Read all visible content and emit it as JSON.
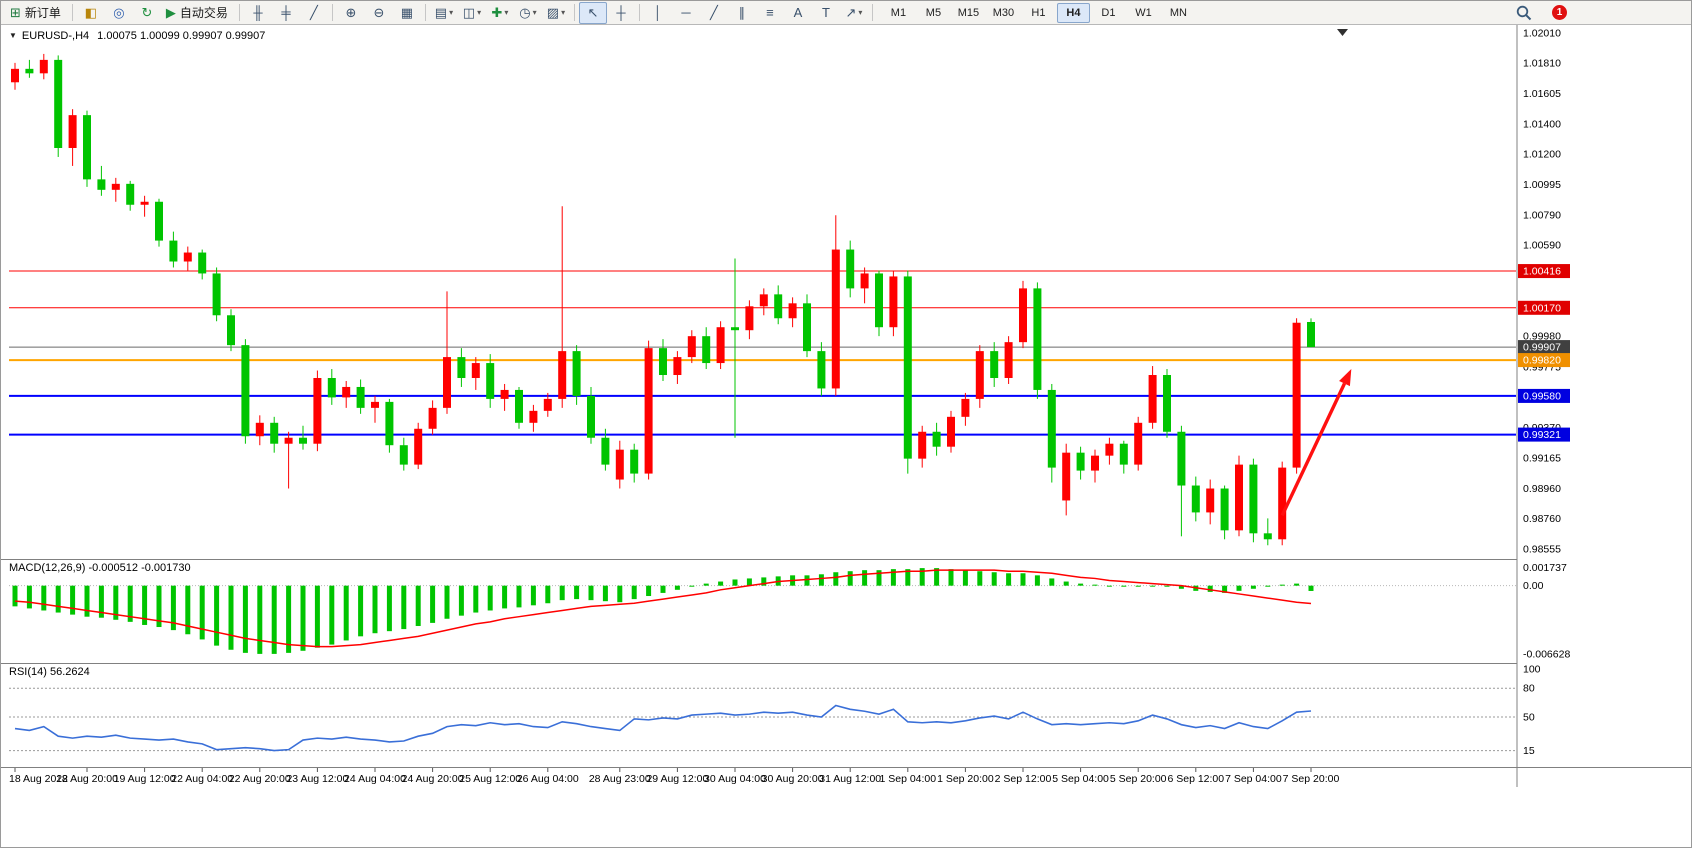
{
  "colors": {
    "bull": "#ff0000",
    "bear": "#00c400",
    "macd_bar": "#00c400",
    "macd_signal": "#ff0000",
    "rsi_line": "#3a6fd8",
    "current_price": "#6a6a6a",
    "arrow": "#ff1010",
    "badge": "#e01010"
  },
  "toolbar": {
    "buttons": [
      {
        "name": "new-order-button",
        "icon": "new-order-icon",
        "glyph": "⊞",
        "glyph_color": "#1f7a3f",
        "label": "新订单"
      },
      {
        "sep": true
      },
      {
        "name": "market-watch-button",
        "icon": "market-watch-icon",
        "glyph": "◧",
        "glyph_color": "#b8860b"
      },
      {
        "name": "navigator-button",
        "icon": "navigator-icon",
        "glyph": "◎",
        "glyph_color": "#2f5fae"
      },
      {
        "name": "refresh-button",
        "icon": "circular-arrows-icon",
        "glyph": "↻",
        "glyph_color": "#1f8f3f"
      },
      {
        "name": "autotrading-button",
        "icon": "autotrading-icon",
        "glyph": "▶",
        "glyph_color": "#1f8f3f",
        "label": "自动交易"
      },
      {
        "sep": true
      },
      {
        "name": "bar-chart-button",
        "icon": "bar-chart-icon",
        "glyph": "╫"
      },
      {
        "name": "candlestick-chart-button",
        "icon": "candlestick-icon",
        "glyph": "╪"
      },
      {
        "name": "line-chart-button",
        "icon": "line-chart-icon",
        "glyph": "╱"
      },
      {
        "sep": true
      },
      {
        "name": "zoom-in-button",
        "icon": "zoom-in-icon",
        "glyph": "⊕"
      },
      {
        "name": "zoom-out-button",
        "icon": "zoom-out-icon",
        "glyph": "⊖"
      },
      {
        "name": "tile-windows-button",
        "icon": "tile-windows-icon",
        "glyph": "▦"
      },
      {
        "sep": true
      },
      {
        "name": "indicator-list-button",
        "icon": "indicator-list-icon",
        "glyph": "▤",
        "dropdown": true
      },
      {
        "name": "indicator-window-button",
        "icon": "indicator-window-icon",
        "glyph": "◫",
        "dropdown": true
      },
      {
        "name": "add-indicator-button",
        "icon": "add-indicator-icon",
        "glyph": "✚",
        "glyph_color": "#1f8f3f",
        "dropdown": true
      },
      {
        "name": "periods-button",
        "icon": "clock-icon",
        "glyph": "◷",
        "dropdown": true
      },
      {
        "name": "templates-button",
        "icon": "template-icon",
        "glyph": "▨",
        "dropdown": true
      },
      {
        "sep": true
      },
      {
        "name": "cursor-button",
        "icon": "cursor-icon",
        "glyph": "↖",
        "active": true
      },
      {
        "name": "crosshair-button",
        "icon": "crosshair-icon",
        "glyph": "┼"
      },
      {
        "sep": true
      },
      {
        "name": "vertical-line-button",
        "icon": "vertical-line-icon",
        "glyph": "│"
      },
      {
        "name": "horizontal-line-button",
        "icon": "horizontal-line-icon",
        "glyph": "─"
      },
      {
        "name": "trendline-button",
        "icon": "trendline-icon",
        "glyph": "╱"
      },
      {
        "name": "equidistant-channel-button",
        "icon": "channel-icon",
        "glyph": "∥"
      },
      {
        "name": "fibonacci-button",
        "icon": "fibonacci-icon",
        "glyph": "≡"
      },
      {
        "name": "text-button",
        "icon": "text-icon",
        "glyph": "A"
      },
      {
        "name": "label-button",
        "icon": "label-icon",
        "glyph": "T"
      },
      {
        "name": "arrows-button",
        "icon": "arrow-object-icon",
        "glyph": "↗",
        "dropdown": true
      },
      {
        "sep": true
      }
    ],
    "timeframes": [
      {
        "label": "M1"
      },
      {
        "label": "M5"
      },
      {
        "label": "M15"
      },
      {
        "label": "M30"
      },
      {
        "label": "H1"
      },
      {
        "label": "H4",
        "active": true
      },
      {
        "label": "D1"
      },
      {
        "label": "W1"
      },
      {
        "label": "MN"
      }
    ],
    "badge_count": "1"
  },
  "chart": {
    "title_symbol": "EURUSD-,H4",
    "title_ohlc": "1.00075 1.00099 0.99907 0.99907",
    "price_ticks": [
      "1.02010",
      "1.01810",
      "1.01605",
      "1.01400",
      "1.01200",
      "1.00995",
      "1.00790",
      "1.00590",
      "0.99980",
      "0.99775",
      "0.99370",
      "0.99165",
      "0.98960",
      "0.98760",
      "0.98555"
    ],
    "price_tags": [
      {
        "text": "1.00416",
        "price": 1.00416,
        "color": "#e00000"
      },
      {
        "text": "1.00170",
        "price": 1.0017,
        "color": "#e00000"
      },
      {
        "text": "0.99907",
        "price": 0.99907,
        "color": "#404040"
      },
      {
        "text": "0.99820",
        "price": 0.9982,
        "color": "#f09000"
      },
      {
        "text": "0.99580",
        "price": 0.9958,
        "color": "#0000e0"
      },
      {
        "text": "0.99321",
        "price": 0.99321,
        "color": "#0000e0"
      }
    ],
    "hlines": [
      {
        "price": 1.00416,
        "color": "#ff0000",
        "width": 1
      },
      {
        "price": 1.0017,
        "color": "#ff0000",
        "width": 1
      },
      {
        "price": 0.99907,
        "color": "#6a6a6a",
        "width": 1
      },
      {
        "price": 0.9982,
        "color": "#ffa500",
        "width": 2
      },
      {
        "price": 0.9958,
        "color": "#0000ff",
        "width": 2
      },
      {
        "price": 0.99321,
        "color": "#0000ff",
        "width": 2
      }
    ],
    "arrow": {
      "from_idx": 88,
      "from_price": 0.9878,
      "to_idx": 92.8,
      "to_price": 0.9976
    }
  },
  "chart_data": {
    "type": "candlestick",
    "symbol": "EURUSD-",
    "timeframe": "H4",
    "ylim": [
      0.98555,
      1.0201
    ],
    "ohlc": [
      [
        1.0168,
        1.0181,
        1.0163,
        1.0177
      ],
      [
        1.0177,
        1.0183,
        1.0171,
        1.0174
      ],
      [
        1.0174,
        1.0187,
        1.017,
        1.0183
      ],
      [
        1.0183,
        1.0186,
        1.0118,
        1.0124
      ],
      [
        1.0124,
        1.015,
        1.0112,
        1.0146
      ],
      [
        1.0146,
        1.0149,
        1.0098,
        1.0103
      ],
      [
        1.0103,
        1.0112,
        1.0092,
        1.0096
      ],
      [
        1.0096,
        1.0104,
        1.0088,
        1.01
      ],
      [
        1.01,
        1.0102,
        1.0082,
        1.0086
      ],
      [
        1.0086,
        1.0092,
        1.0078,
        1.0088
      ],
      [
        1.0088,
        1.009,
        1.0058,
        1.0062
      ],
      [
        1.0062,
        1.0068,
        1.0044,
        1.0048
      ],
      [
        1.0048,
        1.0058,
        1.0042,
        1.0054
      ],
      [
        1.0054,
        1.0056,
        1.0036,
        1.004
      ],
      [
        1.004,
        1.0044,
        1.0008,
        1.0012
      ],
      [
        1.0012,
        1.0016,
        0.9988,
        0.9992
      ],
      [
        0.9992,
        0.9996,
        0.9926,
        0.9931
      ],
      [
        0.9931,
        0.9945,
        0.9925,
        0.994
      ],
      [
        0.994,
        0.9944,
        0.992,
        0.9926
      ],
      [
        0.9926,
        0.9934,
        0.9896,
        0.993
      ],
      [
        0.993,
        0.9938,
        0.9922,
        0.9926
      ],
      [
        0.9926,
        0.9975,
        0.9921,
        0.997
      ],
      [
        0.997,
        0.9976,
        0.9952,
        0.9957
      ],
      [
        0.9957,
        0.9968,
        0.995,
        0.9964
      ],
      [
        0.9964,
        0.9969,
        0.9946,
        0.995
      ],
      [
        0.995,
        0.9958,
        0.994,
        0.9954
      ],
      [
        0.9954,
        0.9956,
        0.992,
        0.9925
      ],
      [
        0.9925,
        0.993,
        0.9908,
        0.9912
      ],
      [
        0.9912,
        0.994,
        0.9909,
        0.9936
      ],
      [
        0.9936,
        0.9955,
        0.9932,
        0.995
      ],
      [
        0.995,
        1.0028,
        0.9946,
        0.9984
      ],
      [
        0.9984,
        0.999,
        0.9964,
        0.997
      ],
      [
        0.997,
        0.9984,
        0.9962,
        0.998
      ],
      [
        0.998,
        0.9986,
        0.995,
        0.9956
      ],
      [
        0.9956,
        0.9966,
        0.9948,
        0.9962
      ],
      [
        0.9962,
        0.9964,
        0.9936,
        0.994
      ],
      [
        0.994,
        0.9952,
        0.9934,
        0.9948
      ],
      [
        0.9948,
        0.996,
        0.9944,
        0.9956
      ],
      [
        0.9956,
        1.0085,
        0.995,
        0.9988
      ],
      [
        0.9988,
        0.9992,
        0.9952,
        0.9958
      ],
      [
        0.9958,
        0.9964,
        0.9926,
        0.993
      ],
      [
        0.993,
        0.9936,
        0.9908,
        0.9912
      ],
      [
        0.9902,
        0.9928,
        0.9896,
        0.9922
      ],
      [
        0.9922,
        0.9926,
        0.99,
        0.9906
      ],
      [
        0.9906,
        0.9995,
        0.9902,
        0.999
      ],
      [
        0.999,
        0.9996,
        0.9968,
        0.9972
      ],
      [
        0.9972,
        0.9988,
        0.9966,
        0.9984
      ],
      [
        0.9984,
        1.0002,
        0.998,
        0.9998
      ],
      [
        0.9998,
        1.0004,
        0.9976,
        0.998
      ],
      [
        0.998,
        1.0008,
        0.9976,
        1.0004
      ],
      [
        1.0004,
        1.005,
        0.993,
        1.0002
      ],
      [
        1.0002,
        1.0022,
        0.9996,
        1.0018
      ],
      [
        1.0018,
        1.003,
        1.0012,
        1.0026
      ],
      [
        1.0026,
        1.0032,
        1.0006,
        1.001
      ],
      [
        1.001,
        1.0024,
        1.0004,
        1.002
      ],
      [
        1.002,
        1.0026,
        0.9984,
        0.9988
      ],
      [
        0.9988,
        0.9994,
        0.9958,
        0.9963
      ],
      [
        0.9963,
        1.0079,
        0.9958,
        1.0056
      ],
      [
        1.0056,
        1.0062,
        1.0024,
        1.003
      ],
      [
        1.003,
        1.0044,
        1.002,
        1.004
      ],
      [
        1.004,
        1.0042,
        0.9998,
        1.0004
      ],
      [
        1.0004,
        1.0042,
        0.9998,
        1.0038
      ],
      [
        1.0038,
        1.0042,
        0.9906,
        0.9916
      ],
      [
        0.9916,
        0.9938,
        0.991,
        0.9934
      ],
      [
        0.9934,
        0.994,
        0.9918,
        0.9924
      ],
      [
        0.9924,
        0.9948,
        0.992,
        0.9944
      ],
      [
        0.9944,
        0.996,
        0.9938,
        0.9956
      ],
      [
        0.9956,
        0.9992,
        0.995,
        0.9988
      ],
      [
        0.9988,
        0.9994,
        0.9964,
        0.997
      ],
      [
        0.997,
        0.9998,
        0.9966,
        0.9994
      ],
      [
        0.9994,
        1.0035,
        0.999,
        1.003
      ],
      [
        1.003,
        1.0034,
        0.9956,
        0.9962
      ],
      [
        0.9962,
        0.9966,
        0.99,
        0.991
      ],
      [
        0.9888,
        0.9926,
        0.9878,
        0.992
      ],
      [
        0.992,
        0.9924,
        0.9902,
        0.9908
      ],
      [
        0.9908,
        0.9922,
        0.99,
        0.9918
      ],
      [
        0.9918,
        0.993,
        0.9912,
        0.9926
      ],
      [
        0.9926,
        0.9928,
        0.9906,
        0.9912
      ],
      [
        0.9912,
        0.9944,
        0.9908,
        0.994
      ],
      [
        0.994,
        0.9978,
        0.9936,
        0.9972
      ],
      [
        0.9972,
        0.9976,
        0.993,
        0.9934
      ],
      [
        0.9934,
        0.9938,
        0.9864,
        0.9898
      ],
      [
        0.9898,
        0.9904,
        0.9874,
        0.988
      ],
      [
        0.988,
        0.9902,
        0.9872,
        0.9896
      ],
      [
        0.9896,
        0.9898,
        0.9862,
        0.9868
      ],
      [
        0.9868,
        0.9918,
        0.9864,
        0.9912
      ],
      [
        0.9912,
        0.9916,
        0.986,
        0.9866
      ],
      [
        0.9866,
        0.9876,
        0.9858,
        0.9862
      ],
      [
        0.9862,
        0.9914,
        0.9858,
        0.991
      ],
      [
        0.991,
        1.001,
        0.9906,
        1.0007
      ],
      [
        1.00075,
        1.00099,
        0.99907,
        0.99907
      ]
    ],
    "macd": {
      "ylim": [
        -0.0069,
        0.002
      ],
      "values": [
        -0.002,
        -0.0022,
        -0.0024,
        -0.0026,
        -0.0028,
        -0.003,
        -0.0031,
        -0.0033,
        -0.0035,
        -0.0038,
        -0.004,
        -0.0043,
        -0.0047,
        -0.0052,
        -0.0058,
        -0.0062,
        -0.0065,
        -0.0066,
        -0.0066,
        -0.0065,
        -0.0063,
        -0.006,
        -0.0057,
        -0.0053,
        -0.0049,
        -0.0046,
        -0.0044,
        -0.0042,
        -0.0039,
        -0.0036,
        -0.0032,
        -0.0029,
        -0.0026,
        -0.0024,
        -0.0022,
        -0.0021,
        -0.0019,
        -0.0017,
        -0.0014,
        -0.0013,
        -0.0014,
        -0.0015,
        -0.0016,
        -0.0013,
        -0.001,
        -0.0007,
        -0.0004,
        -0.0001,
        0.0002,
        0.0004,
        0.0006,
        0.0007,
        0.0008,
        0.0009,
        0.001,
        0.001,
        0.0011,
        0.0013,
        0.0014,
        0.0015,
        0.0015,
        0.0016,
        0.0016,
        0.0017,
        0.0017,
        0.0016,
        0.0015,
        0.0014,
        0.0013,
        0.0012,
        0.0012,
        0.001,
        0.0007,
        0.0004,
        0.0002,
        0.0001,
        0.0,
        -0.0001,
        -0.0001,
        0.0,
        -0.0001,
        -0.0003,
        -0.0005,
        -0.0006,
        -0.0007,
        -0.0005,
        -0.0003,
        -0.0001,
        0.0001,
        0.0002,
        -0.000512
      ],
      "signal": [
        -0.0015,
        -0.0016,
        -0.0018,
        -0.002,
        -0.0022,
        -0.0024,
        -0.0026,
        -0.0028,
        -0.003,
        -0.0032,
        -0.0034,
        -0.0036,
        -0.0039,
        -0.0042,
        -0.0045,
        -0.0048,
        -0.0051,
        -0.0053,
        -0.0055,
        -0.0057,
        -0.0058,
        -0.0059,
        -0.0059,
        -0.0058,
        -0.0057,
        -0.0055,
        -0.0053,
        -0.0051,
        -0.0049,
        -0.0046,
        -0.0043,
        -0.004,
        -0.0037,
        -0.0035,
        -0.0032,
        -0.003,
        -0.0028,
        -0.0026,
        -0.0024,
        -0.0022,
        -0.002,
        -0.0019,
        -0.0018,
        -0.0017,
        -0.0015,
        -0.0013,
        -0.0011,
        -0.0009,
        -0.0007,
        -0.0004,
        -0.0002,
        0.0,
        0.0002,
        0.0004,
        0.0005,
        0.0006,
        0.0007,
        0.0008,
        0.001,
        0.0011,
        0.0012,
        0.0013,
        0.0014,
        0.0014,
        0.0015,
        0.0015,
        0.0015,
        0.0015,
        0.0015,
        0.0014,
        0.0014,
        0.0013,
        0.0012,
        0.001,
        0.0008,
        0.0007,
        0.0005,
        0.0004,
        0.0003,
        0.0002,
        0.0001,
        0.0,
        -0.0002,
        -0.0004,
        -0.0006,
        -0.0008,
        -0.001,
        -0.0012,
        -0.0014,
        -0.0016,
        -0.00173
      ]
    },
    "rsi": {
      "ylim": [
        0,
        100
      ],
      "values": [
        38,
        36,
        40,
        30,
        28,
        30,
        29,
        31,
        28,
        27,
        26,
        27,
        24,
        22,
        16,
        17,
        18,
        17,
        15,
        16,
        26,
        28,
        27,
        29,
        27,
        26,
        24,
        25,
        30,
        33,
        40,
        42,
        41,
        44,
        42,
        43,
        40,
        39,
        45,
        43,
        40,
        38,
        36,
        48,
        47,
        49,
        48,
        52,
        53,
        54,
        52,
        53,
        55,
        54,
        55,
        52,
        50,
        62,
        58,
        56,
        53,
        58,
        45,
        44,
        45,
        44,
        46,
        49,
        51,
        48,
        55,
        48,
        42,
        43,
        42,
        43,
        44,
        43,
        46,
        52,
        48,
        42,
        39,
        41,
        38,
        44,
        40,
        38,
        46,
        55,
        56.2624
      ]
    }
  },
  "indicators": {
    "macd_label": "MACD(12,26,9) -0.000512 -0.001730",
    "rsi_label": "RSI(14) 56.2624",
    "macd_axis": [
      {
        "v": 0.001737,
        "t": "0.001737"
      },
      {
        "v": 0,
        "t": "0.00"
      },
      {
        "v": -0.006628,
        "t": "-0.006628"
      }
    ],
    "rsi_axis": [
      {
        "v": 100,
        "t": "100"
      },
      {
        "v": 80,
        "t": "80"
      },
      {
        "v": 50,
        "t": "50"
      },
      {
        "v": 15,
        "t": "15"
      }
    ],
    "rsi_levels": [
      80,
      50,
      15
    ]
  },
  "time_axis": {
    "labels": [
      {
        "i": 0,
        "t": "18 Aug 2022"
      },
      {
        "i": 5,
        "t": "18 Aug 20:00"
      },
      {
        "i": 9,
        "t": "19 Aug 12:00"
      },
      {
        "i": 13,
        "t": "22 Aug 04:00"
      },
      {
        "i": 17,
        "t": "22 Aug 20:00"
      },
      {
        "i": 21,
        "t": "23 Aug 12:00"
      },
      {
        "i": 25,
        "t": "24 Aug 04:00"
      },
      {
        "i": 29,
        "t": "24 Aug 20:00"
      },
      {
        "i": 33,
        "t": "25 Aug 12:00"
      },
      {
        "i": 37,
        "t": "26 Aug 04:00"
      },
      {
        "i": 42,
        "t": "28 Aug 23:00"
      },
      {
        "i": 46,
        "t": "29 Aug 12:00"
      },
      {
        "i": 50,
        "t": "30 Aug 04:00"
      },
      {
        "i": 54,
        "t": "30 Aug 20:00"
      },
      {
        "i": 58,
        "t": "31 Aug 12:00"
      },
      {
        "i": 62,
        "t": "1 Sep 04:00"
      },
      {
        "i": 66,
        "t": "1 Sep 20:00"
      },
      {
        "i": 70,
        "t": "2 Sep 12:00"
      },
      {
        "i": 74,
        "t": "5 Sep 04:00"
      },
      {
        "i": 78,
        "t": "5 Sep 20:00"
      },
      {
        "i": 82,
        "t": "6 Sep 12:00"
      },
      {
        "i": 86,
        "t": "7 Sep 04:00"
      },
      {
        "i": 90,
        "t": "7 Sep 20:00"
      }
    ]
  }
}
